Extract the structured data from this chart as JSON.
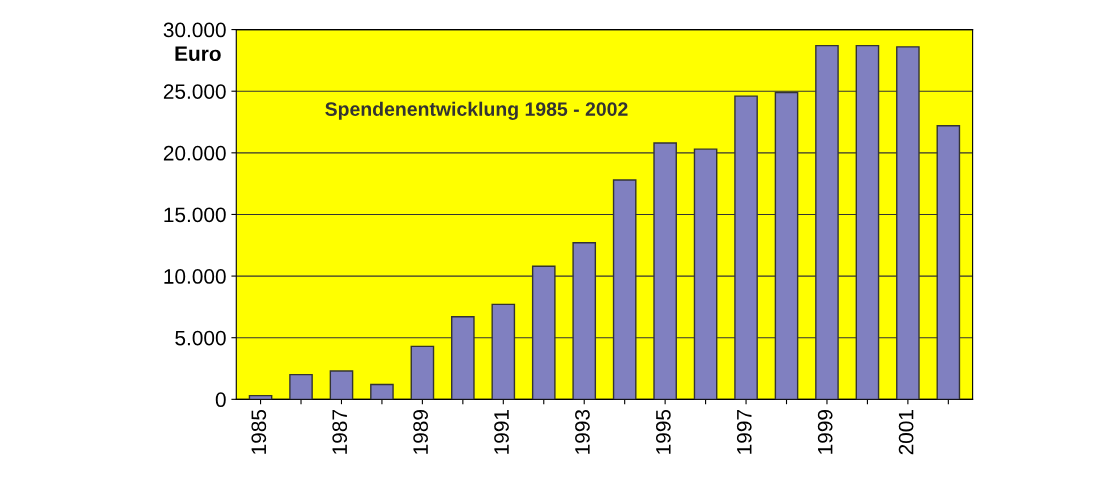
{
  "chart_data": {
    "type": "bar",
    "title": "Spendenentwicklung 1985 - 2002",
    "ylabel": "Euro",
    "categories": [
      "1985",
      null,
      "1987",
      null,
      "1989",
      null,
      "1991",
      null,
      "1993",
      null,
      "1995",
      null,
      "1997",
      null,
      "1999",
      null,
      "2001",
      null
    ],
    "values": [
      300,
      2000,
      2300,
      1200,
      4300,
      6700,
      7700,
      10800,
      12700,
      17800,
      20800,
      20300,
      24600,
      24900,
      28700,
      28700,
      28600,
      22200
    ],
    "color": "#8080c0",
    "ylim": [
      0,
      30000
    ],
    "yticks": [
      {
        "value": 0,
        "label": "0"
      },
      {
        "value": 5000,
        "label": "5.000"
      },
      {
        "value": 10000,
        "label": "10.000"
      },
      {
        "value": 15000,
        "label": "15.000"
      },
      {
        "value": 20000,
        "label": "20.000"
      },
      {
        "value": 25000,
        "label": "25.000"
      },
      {
        "value": 30000,
        "label": "30.000"
      }
    ],
    "grid": "y"
  }
}
